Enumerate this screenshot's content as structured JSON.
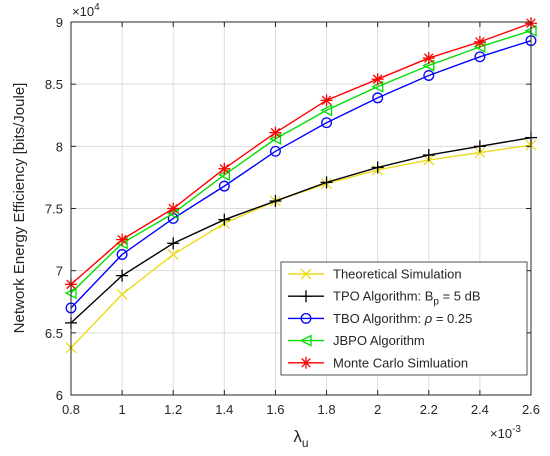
{
  "chart_data": {
    "type": "line",
    "xlabel": "λ",
    "xlabel_subscript": "u",
    "ylabel": "Network Energy Efficiency [bits/Joule]",
    "x_multiplier": "×10",
    "x_exponent": "-3",
    "y_multiplier": "×10",
    "y_exponent": "4",
    "xlim": [
      0.8,
      2.6
    ],
    "ylim": [
      6,
      9
    ],
    "xticks": [
      0.8,
      1,
      1.2,
      1.4,
      1.6,
      1.8,
      2,
      2.2,
      2.4,
      2.6
    ],
    "xtick_labels": [
      "0.8",
      "1",
      "1.2",
      "1.4",
      "1.6",
      "1.8",
      "2",
      "2.2",
      "2.4",
      "2.6"
    ],
    "yticks": [
      6,
      6.5,
      7,
      7.5,
      8,
      8.5,
      9
    ],
    "ytick_labels": [
      "6",
      "6.5",
      "7",
      "7.5",
      "8",
      "8.5",
      "9"
    ],
    "grid": true,
    "legend_position": "bottom-right",
    "x": [
      0.8,
      1.0,
      1.2,
      1.4,
      1.6,
      1.8,
      2.0,
      2.2,
      2.4,
      2.6
    ],
    "series": [
      {
        "name": "Theoretical Simulation",
        "legend_parts": [
          "Theoretical Simulation"
        ],
        "color": "#EDDA1B",
        "marker": "x",
        "values": [
          6.38,
          6.81,
          7.13,
          7.38,
          7.56,
          7.7,
          7.81,
          7.89,
          7.95,
          8.01
        ]
      },
      {
        "name": "TPO Algorithm: B_p = 5 dB",
        "legend_parts": [
          "TPO Algorithm: B",
          "p",
          " = 5 dB"
        ],
        "color": "#000000",
        "marker": "+",
        "values": [
          6.58,
          6.96,
          7.22,
          7.41,
          7.56,
          7.71,
          7.83,
          7.93,
          8.0,
          8.07
        ]
      },
      {
        "name": "TBO Algorithm: ρ = 0.25",
        "legend_parts": [
          "TBO Algorithm: ",
          "ρ",
          " = 0.25"
        ],
        "color": "#0000FF",
        "marker": "o",
        "values": [
          6.7,
          7.13,
          7.42,
          7.68,
          7.96,
          8.19,
          8.39,
          8.57,
          8.72,
          8.85
        ]
      },
      {
        "name": "JBPO Algorithm",
        "legend_parts": [
          "JBPO Algorithm"
        ],
        "color": "#00DD00",
        "marker": "<",
        "values": [
          6.82,
          7.22,
          7.46,
          7.77,
          8.06,
          8.29,
          8.48,
          8.65,
          8.8,
          8.93
        ]
      },
      {
        "name": "Monte Carlo Simluation",
        "legend_parts": [
          "Monte Carlo Simluation"
        ],
        "color": "#FF0000",
        "marker": "*",
        "values": [
          6.89,
          7.25,
          7.5,
          7.82,
          8.11,
          8.37,
          8.54,
          8.71,
          8.84,
          8.99
        ]
      }
    ]
  }
}
